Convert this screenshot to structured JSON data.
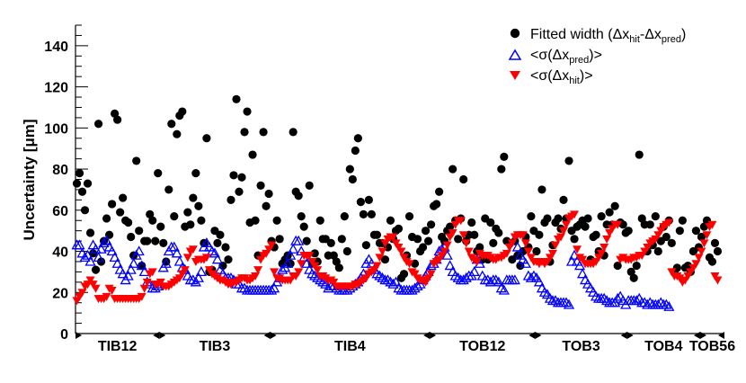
{
  "chart_data": {
    "type": "scatter",
    "title": "",
    "xlabel": "",
    "ylabel": "Uncertainty [μm]",
    "ylim": [
      0,
      150
    ],
    "yticks": [
      0,
      20,
      40,
      60,
      80,
      100,
      120,
      140
    ],
    "xlim": [
      0,
      240
    ],
    "grid": false,
    "legend_position": "top-right",
    "legend": {
      "fitted": {
        "prefix": "Fitted width (Δx",
        "sub1": "hit",
        "mid": "-Δx",
        "sub2": "pred",
        "suffix": ")"
      },
      "pred": {
        "prefix": "<σ(Δx",
        "sub": "pred",
        "suffix": ")>"
      },
      "hit": {
        "prefix": "<σ(Δx",
        "sub": "hit",
        "suffix": ")>"
      }
    },
    "regions": [
      {
        "label": "TIB12",
        "x0": 0,
        "x1": 31
      },
      {
        "label": "TIB3",
        "x0": 31,
        "x1": 72
      },
      {
        "label": "TIB4",
        "x0": 72,
        "x1": 131
      },
      {
        "label": "TOB12",
        "x0": 131,
        "x1": 170
      },
      {
        "label": "TOB3",
        "x0": 170,
        "x1": 204
      },
      {
        "label": "TOB4",
        "x0": 204,
        "x1": 231
      },
      {
        "label": "TOB56",
        "x0": 231,
        "x1": 240
      }
    ],
    "series": [
      {
        "name": "Fitted width",
        "marker": "circle",
        "color": "#000000",
        "values": [
          73,
          78,
          69,
          60,
          73,
          49,
          39,
          31,
          102,
          35,
          45,
          56,
          48,
          63,
          107,
          104,
          59,
          66,
          55,
          54,
          47,
          38,
          84,
          50,
          33,
          45,
          45,
          58,
          55,
          45,
          78,
          52,
          44,
          35,
          70,
          102,
          57,
          97,
          106,
          108,
          52,
          59,
          53,
          66,
          78,
          62,
          55,
          44,
          95,
          30,
          31,
          50,
          44,
          48,
          33,
          42,
          36,
          65,
          77,
          114,
          69,
          76,
          98,
          108,
          54,
          87,
          55,
          38,
          72,
          98,
          62,
          68,
          45,
          42,
          55,
          46,
          34,
          36,
          38,
          34,
          98,
          69,
          67,
          57,
          52,
          45,
          72,
          34,
          39,
          35,
          55,
          46,
          46,
          38,
          44,
          38,
          35,
          32,
          46,
          57,
          40,
          80,
          75,
          89,
          95,
          64,
          58,
          43,
          65,
          58,
          48,
          48,
          44,
          44,
          36,
          42,
          55,
          46,
          50,
          51,
          27,
          29,
          38,
          57,
          47,
          34,
          46,
          40,
          42,
          50,
          45,
          53,
          62,
          63,
          69,
          47,
          45,
          50,
          52,
          80,
          55,
          46,
          56,
          75,
          45,
          48,
          54,
          48,
          40,
          42,
          36,
          56,
          36,
          54,
          44,
          51,
          49,
          80,
          86,
          45,
          44,
          36,
          45,
          38,
          33,
          40,
          47,
          42,
          57,
          50,
          40,
          48,
          70,
          54,
          56,
          35,
          43,
          54,
          56,
          51,
          65,
          56,
          84,
          50,
          46,
          52,
          53,
          55,
          52,
          56,
          36,
          47,
          48,
          40,
          57,
          38,
          53,
          59,
          53,
          62,
          33,
          54,
          53,
          49,
          50,
          30,
          27,
          33,
          87,
          56,
          53,
          40,
          53,
          43,
          57,
          40,
          45,
          52,
          47,
          55,
          44,
          30,
          32,
          50,
          55,
          32,
          33,
          30,
          40,
          50,
          42,
          47,
          52,
          55,
          37,
          35,
          44,
          40
        ],
        "x_step": 1
      },
      {
        "name": "<σ(Δx pred)>",
        "marker": "triangle-up-open",
        "color": "#0000ff",
        "values": [
          43,
          43,
          39,
          37,
          38,
          35,
          43,
          41,
          37,
          41,
          44,
          45,
          42,
          40,
          37,
          34,
          31,
          29,
          26,
          28,
          31,
          34,
          38,
          40,
          33,
          30,
          25,
          24,
          22,
          22,
          23,
          24,
          32,
          34,
          40,
          42,
          42,
          39,
          35,
          32,
          31,
          28,
          26,
          26,
          25,
          27,
          30,
          42,
          44,
          42,
          40,
          39,
          36,
          31,
          29,
          27,
          27,
          27,
          26,
          24,
          24,
          22,
          22,
          21,
          21,
          21,
          21,
          21,
          21,
          21,
          21,
          21,
          21,
          22,
          25,
          27,
          31,
          32,
          34,
          38,
          41,
          45,
          45,
          40,
          37,
          34,
          31,
          29,
          28,
          27,
          26,
          25,
          24,
          22,
          23,
          23,
          22,
          21,
          21,
          21,
          21,
          22,
          23,
          24,
          25,
          27,
          29,
          34,
          36,
          34,
          31,
          29,
          28,
          27,
          26,
          26,
          25,
          24,
          25,
          22,
          21,
          21,
          21,
          21,
          21,
          22,
          23,
          24,
          26,
          28,
          30,
          33,
          34,
          36,
          40,
          41,
          42,
          38,
          33,
          30,
          28,
          27,
          26,
          26,
          27,
          28,
          28,
          30,
          36,
          34,
          28,
          26,
          26,
          25,
          26,
          26,
          25,
          22,
          21,
          26,
          26,
          26,
          26,
          42,
          38,
          36,
          34,
          28,
          27,
          28,
          27,
          25,
          22,
          20,
          19,
          17,
          16,
          16,
          15,
          15,
          15,
          15,
          14,
          35,
          38,
          35,
          33,
          29,
          26,
          24,
          22,
          20,
          18,
          17,
          17,
          17,
          16,
          15,
          15,
          15,
          17,
          18,
          16,
          14,
          16,
          16,
          16,
          16,
          17,
          15,
          15,
          14,
          15,
          14,
          14,
          14,
          15,
          14,
          14,
          13
        ],
        "x_step": 1
      },
      {
        "name": "<σ(Δx hit)>",
        "marker": "triangle-down-filled",
        "color": "#ff0000",
        "values": [
          16,
          18,
          20,
          23,
          24,
          26,
          24,
          22,
          17,
          17,
          17,
          18,
          22,
          21,
          17,
          17,
          17,
          17,
          17,
          17,
          17,
          17,
          17,
          17,
          18,
          22,
          25,
          29,
          30,
          24,
          24,
          25,
          23,
          23,
          23,
          24,
          25,
          26,
          27,
          29,
          31,
          37,
          40,
          41,
          35,
          36,
          36,
          36,
          37,
          31,
          29,
          28,
          27,
          26,
          26,
          25,
          24,
          24,
          25,
          25,
          26,
          27,
          27,
          26,
          26,
          27,
          28,
          31,
          36,
          38,
          39,
          41,
          43,
          30,
          27,
          27,
          26,
          26,
          26,
          26,
          28,
          28,
          30,
          34,
          38,
          38,
          38,
          35,
          33,
          31,
          28,
          28,
          27,
          26,
          26,
          25,
          23,
          23,
          23,
          23,
          23,
          23,
          23,
          24,
          24,
          25,
          26,
          27,
          29,
          30,
          31,
          33,
          37,
          40,
          44,
          46,
          47,
          47,
          44,
          42,
          40,
          37,
          35,
          34,
          30,
          29,
          27,
          26,
          26,
          25,
          27,
          29,
          34,
          35,
          36,
          38,
          40,
          43,
          47,
          49,
          53,
          55,
          55,
          48,
          44,
          40,
          37,
          36,
          35,
          39,
          38,
          38,
          38,
          37,
          36,
          36,
          37,
          37,
          38,
          39,
          42,
          44,
          47,
          48,
          48,
          48,
          44,
          40,
          37,
          35,
          35,
          34,
          35,
          34,
          35,
          37,
          39,
          43,
          46,
          47,
          50,
          53,
          56,
          57,
          58,
          41,
          37,
          36,
          34,
          34,
          34,
          34,
          35,
          37,
          39,
          42,
          46,
          49,
          51,
          53,
          53,
          36,
          37,
          36,
          36,
          36,
          37,
          37,
          38,
          38,
          40,
          42,
          44,
          45,
          46,
          48,
          50,
          52,
          53,
          54,
          30,
          28,
          28,
          27,
          25,
          26,
          28,
          30,
          32,
          34,
          37,
          40,
          44,
          48,
          52,
          53,
          28,
          26
        ],
        "x_step": 1
      }
    ]
  }
}
